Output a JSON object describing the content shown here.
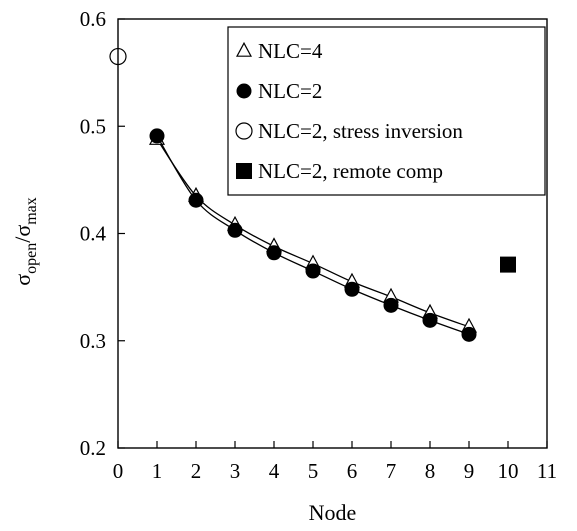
{
  "chart_data": {
    "type": "scatter",
    "xlabel": "Node",
    "ylabel": {
      "main": "σ",
      "sub1": "open",
      "slash": "/",
      "main2": "σ",
      "sub2": "max"
    },
    "xlim": [
      0,
      11
    ],
    "ylim": [
      0.2,
      0.6
    ],
    "x_ticks": [
      0,
      1,
      2,
      3,
      4,
      5,
      6,
      7,
      8,
      9,
      10,
      11
    ],
    "y_ticks": [
      0.2,
      0.3,
      0.4,
      0.5,
      0.6
    ],
    "y_tick_labels": [
      "0.2",
      "0.3",
      "0.4",
      "0.5",
      "0.6"
    ],
    "grid": false,
    "legend_position": "top-right",
    "series": [
      {
        "name": "NLC=4",
        "marker": "open-triangle",
        "line": true,
        "x": [
          1,
          2,
          3,
          4,
          5,
          6,
          7,
          8,
          9
        ],
        "y": [
          0.488,
          0.435,
          0.408,
          0.388,
          0.372,
          0.355,
          0.341,
          0.326,
          0.313
        ]
      },
      {
        "name": "NLC=2",
        "marker": "filled-circle",
        "line": true,
        "x": [
          1,
          2,
          3,
          4,
          5,
          6,
          7,
          8,
          9
        ],
        "y": [
          0.491,
          0.431,
          0.403,
          0.382,
          0.365,
          0.348,
          0.333,
          0.319,
          0.306
        ]
      },
      {
        "name": "NLC=2, stress inversion",
        "marker": "open-circle",
        "line": false,
        "x": [
          0
        ],
        "y": [
          0.565
        ]
      },
      {
        "name": "NLC=2, remote comp",
        "marker": "filled-square",
        "line": false,
        "x": [
          10
        ],
        "y": [
          0.371
        ]
      }
    ]
  }
}
